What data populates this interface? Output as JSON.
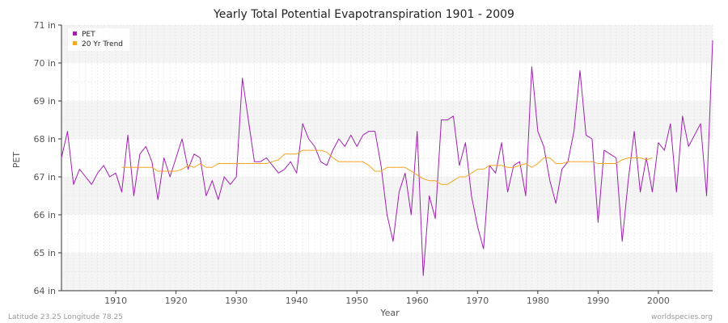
{
  "chart_data": {
    "type": "line",
    "title": "Yearly Total Potential Evapotranspiration 1901 - 2009",
    "xlabel": "Year",
    "ylabel": "PET",
    "xlim": [
      1901,
      2009
    ],
    "ylim": [
      64,
      71
    ],
    "x_ticks": [
      1910,
      1920,
      1930,
      1940,
      1950,
      1960,
      1970,
      1980,
      1990,
      2000
    ],
    "y_ticks": [
      {
        "value": 64,
        "label": "64 in"
      },
      {
        "value": 65,
        "label": "65 in"
      },
      {
        "value": 66,
        "label": "66 in"
      },
      {
        "value": 67,
        "label": "67 in"
      },
      {
        "value": 68,
        "label": "68 in"
      },
      {
        "value": 69,
        "label": "69 in"
      },
      {
        "value": 70,
        "label": "70 in"
      },
      {
        "value": 71,
        "label": "71 in"
      }
    ],
    "grid": true,
    "legend": "top-left",
    "series": [
      {
        "name": "PET",
        "color": "#a020b0",
        "x_start": 1901,
        "values": [
          67.5,
          68.2,
          66.8,
          67.2,
          67.0,
          66.8,
          67.1,
          67.3,
          67.0,
          67.1,
          66.6,
          68.1,
          66.5,
          67.6,
          67.8,
          67.4,
          66.4,
          67.5,
          67.0,
          67.5,
          68.0,
          67.2,
          67.6,
          67.5,
          66.5,
          66.9,
          66.4,
          67.0,
          66.8,
          67.0,
          69.6,
          68.5,
          67.4,
          67.4,
          67.5,
          67.3,
          67.1,
          67.2,
          67.4,
          67.1,
          68.4,
          68.0,
          67.8,
          67.4,
          67.3,
          67.7,
          68.0,
          67.8,
          68.1,
          67.8,
          68.1,
          68.2,
          68.2,
          67.3,
          66.0,
          65.3,
          66.6,
          67.1,
          66.0,
          68.2,
          64.4,
          66.5,
          65.9,
          68.5,
          68.5,
          68.6,
          67.3,
          67.9,
          66.5,
          65.7,
          65.1,
          67.3,
          67.1,
          67.9,
          66.6,
          67.3,
          67.4,
          66.5,
          69.9,
          68.2,
          67.8,
          66.9,
          66.3,
          67.2,
          67.4,
          68.2,
          69.8,
          68.1,
          68.0,
          65.8,
          67.7,
          67.6,
          67.5,
          65.3,
          66.9,
          68.2,
          66.6,
          67.5,
          66.6,
          67.9,
          67.7,
          68.4,
          66.6,
          68.6,
          67.8,
          68.1,
          68.4,
          66.5,
          70.6
        ]
      },
      {
        "name": "20 Yr Trend",
        "color": "#f5a623",
        "x_start": 1911,
        "values": [
          67.25,
          67.25,
          67.25,
          67.25,
          67.25,
          67.25,
          67.15,
          67.15,
          67.15,
          67.15,
          67.2,
          67.3,
          67.25,
          67.35,
          67.25,
          67.25,
          67.35,
          67.35,
          67.35,
          67.35,
          67.35,
          67.35,
          67.35,
          67.35,
          67.35,
          67.4,
          67.45,
          67.6,
          67.6,
          67.6,
          67.7,
          67.7,
          67.7,
          67.7,
          67.65,
          67.5,
          67.4,
          67.4,
          67.4,
          67.4,
          67.4,
          67.3,
          67.15,
          67.15,
          67.25,
          67.25,
          67.25,
          67.25,
          67.15,
          67.05,
          66.95,
          66.9,
          66.9,
          66.8,
          66.8,
          66.9,
          67.0,
          67.0,
          67.1,
          67.2,
          67.2,
          67.3,
          67.3,
          67.3,
          67.25,
          67.25,
          67.3,
          67.35,
          67.25,
          67.35,
          67.5,
          67.5,
          67.35,
          67.35,
          67.4,
          67.4,
          67.4,
          67.4,
          67.4,
          67.35,
          67.35,
          67.35,
          67.35,
          67.45,
          67.5,
          67.5,
          67.5,
          67.45,
          67.5
        ]
      }
    ]
  },
  "footer": {
    "left": "Latitude 23.25 Longitude 78.25",
    "right": "worldspecies.org"
  }
}
